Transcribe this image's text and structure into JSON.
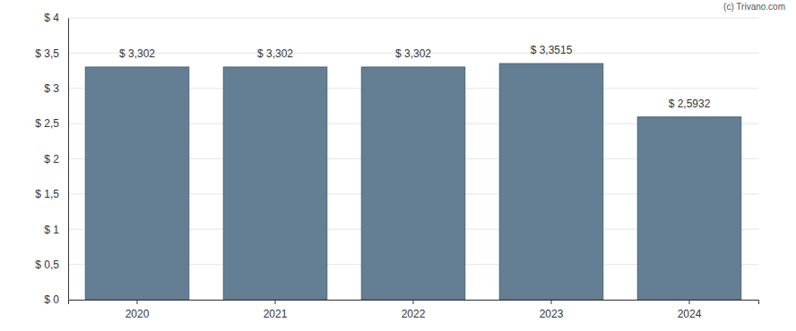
{
  "chart_data": {
    "type": "bar",
    "annotations": [
      "(c) Trivano.com"
    ],
    "categories": [
      "2020",
      "2021",
      "2022",
      "2023",
      "2024"
    ],
    "values": [
      3.302,
      3.302,
      3.302,
      3.3515,
      2.5932
    ],
    "value_labels": [
      "$ 3,302",
      "$ 3,302",
      "$ 3,302",
      "$ 3,3515",
      "$ 2,5932"
    ],
    "data_labels": true,
    "color": "#647f93",
    "ylim": [
      0,
      4
    ],
    "yticks": [
      {
        "value": 0,
        "label": "$ 0"
      },
      {
        "value": 0.5,
        "label": "$ 0,5"
      },
      {
        "value": 1,
        "label": "$ 1"
      },
      {
        "value": 1.5,
        "label": "$ 1,5"
      },
      {
        "value": 2,
        "label": "$ 2"
      },
      {
        "value": 2.5,
        "label": "$ 2,5"
      },
      {
        "value": 3,
        "label": "$ 3"
      },
      {
        "value": 3.5,
        "label": "$ 3,5"
      },
      {
        "value": 4,
        "label": "$ 4"
      }
    ],
    "grid": true
  }
}
